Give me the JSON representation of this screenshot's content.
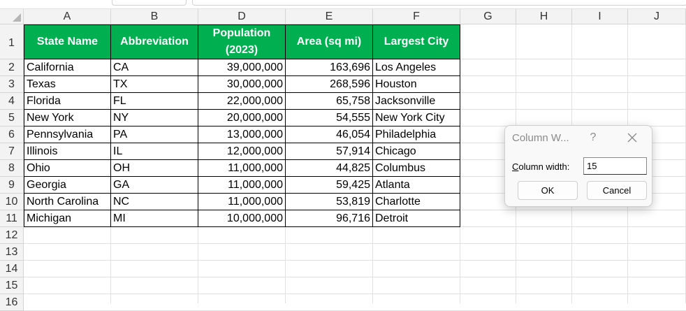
{
  "columns": [
    "A",
    "B",
    "D",
    "E",
    "F",
    "G",
    "H",
    "I",
    "J"
  ],
  "rows": [
    "1",
    "2",
    "3",
    "4",
    "5",
    "6",
    "7",
    "8",
    "9",
    "10",
    "11",
    "12",
    "13",
    "14",
    "15",
    "16"
  ],
  "table": {
    "headers": [
      {
        "line1": "State Name",
        "line2": ""
      },
      {
        "line1": "Abbreviation",
        "line2": ""
      },
      {
        "line1": "Population",
        "line2": "(2023)"
      },
      {
        "line1": "Area (sq mi)",
        "line2": ""
      },
      {
        "line1": "Largest City",
        "line2": ""
      }
    ],
    "rows": [
      [
        "California",
        "CA",
        "39,000,000",
        "163,696",
        "Los Angeles"
      ],
      [
        "Texas",
        "TX",
        "30,000,000",
        "268,596",
        "Houston"
      ],
      [
        "Florida",
        "FL",
        "22,000,000",
        "65,758",
        "Jacksonville"
      ],
      [
        "New York",
        "NY",
        "20,000,000",
        "54,555",
        "New York City"
      ],
      [
        "Pennsylvania",
        "PA",
        "13,000,000",
        "46,054",
        "Philadelphia"
      ],
      [
        "Illinois",
        "IL",
        "12,000,000",
        "57,914",
        "Chicago"
      ],
      [
        "Ohio",
        "OH",
        "11,000,000",
        "44,825",
        "Columbus"
      ],
      [
        "Georgia",
        "GA",
        "11,000,000",
        "59,425",
        "Atlanta"
      ],
      [
        "North Carolina",
        "NC",
        "11,000,000",
        "53,819",
        "Charlotte"
      ],
      [
        "Michigan",
        "MI",
        "10,000,000",
        "96,716",
        "Detroit"
      ]
    ]
  },
  "dialog": {
    "title": "Column W...",
    "help": "?",
    "label_accel": "C",
    "label_rest": "olumn width:",
    "value": "15",
    "ok": "OK",
    "cancel": "Cancel"
  },
  "colors": {
    "header_fill": "#00b050",
    "header_text": "#ffffff"
  },
  "icons": {
    "close": "close-icon",
    "select_all": "select-all-triangle-icon"
  }
}
